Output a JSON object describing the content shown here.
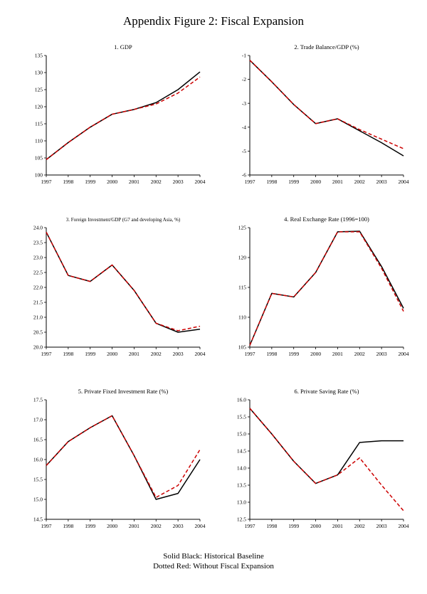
{
  "page": {
    "title": "Appendix Figure 2: Fiscal Expansion",
    "legend_line1": "Solid Black: Historical Baseline",
    "legend_line2": "Dotted Red: Without Fiscal Expansion"
  },
  "colors": {
    "baseline": "#000000",
    "counterfactual": "#cc0000"
  },
  "chart_data": [
    {
      "type": "line",
      "title": "1. GDP",
      "x": [
        "1997",
        "1998",
        "1999",
        "2000",
        "2001",
        "2002",
        "2003",
        "2004"
      ],
      "ylim": [
        100,
        135
      ],
      "yticks": [
        "100",
        "105",
        "110",
        "115",
        "120",
        "125",
        "130",
        "135"
      ],
      "legend_position": "none",
      "grid": false,
      "series": [
        {
          "name": "Historical Baseline",
          "style": "solid",
          "color": "#000000",
          "values": [
            104.5,
            109.5,
            114.0,
            117.8,
            119.2,
            121.2,
            125.0,
            130.2
          ]
        },
        {
          "name": "Without Fiscal Expansion",
          "style": "dashed",
          "color": "#cc0000",
          "values": [
            104.5,
            109.5,
            114.0,
            117.8,
            119.2,
            120.8,
            124.0,
            128.7
          ]
        }
      ]
    },
    {
      "type": "line",
      "title": "2. Trade Balance/GDP (%)",
      "x": [
        "1997",
        "1998",
        "1999",
        "2000",
        "2001",
        "2002",
        "2003",
        "2004"
      ],
      "ylim": [
        -6,
        -1
      ],
      "yticks": [
        "-1",
        "-2",
        "-3",
        "-4",
        "-5",
        "-6"
      ],
      "legend_position": "none",
      "grid": false,
      "series": [
        {
          "name": "Historical Baseline",
          "style": "solid",
          "color": "#000000",
          "values": [
            -1.2,
            -2.1,
            -3.05,
            -3.85,
            -3.65,
            -4.15,
            -4.65,
            -5.2
          ]
        },
        {
          "name": "Without Fiscal Expansion",
          "style": "dashed",
          "color": "#cc0000",
          "values": [
            -1.2,
            -2.1,
            -3.05,
            -3.85,
            -3.65,
            -4.1,
            -4.5,
            -4.9
          ]
        }
      ]
    },
    {
      "type": "line",
      "title": "3. Foreign Investment/GDP (G7 and developing Asia, %)",
      "x": [
        "1997",
        "1998",
        "1999",
        "2000",
        "2001",
        "2002",
        "2003",
        "2004"
      ],
      "ylim": [
        20.0,
        24.0
      ],
      "yticks": [
        "20.0",
        "20.5",
        "21.0",
        "21.5",
        "22.0",
        "22.5",
        "23.0",
        "23.5",
        "24.0"
      ],
      "legend_position": "none",
      "grid": false,
      "series": [
        {
          "name": "Historical Baseline",
          "style": "solid",
          "color": "#000000",
          "values": [
            23.85,
            22.4,
            22.2,
            22.75,
            21.9,
            20.8,
            20.5,
            20.6
          ]
        },
        {
          "name": "Without Fiscal Expansion",
          "style": "dashed",
          "color": "#cc0000",
          "values": [
            23.85,
            22.4,
            22.2,
            22.75,
            21.9,
            20.8,
            20.55,
            20.7
          ]
        }
      ]
    },
    {
      "type": "line",
      "title": "4. Real Exchange Rate (1996=100)",
      "x": [
        "1997",
        "1998",
        "1999",
        "2000",
        "2001",
        "2002",
        "2003",
        "2004"
      ],
      "ylim": [
        105,
        125
      ],
      "yticks": [
        "105",
        "110",
        "115",
        "120",
        "125"
      ],
      "legend_position": "none",
      "grid": false,
      "series": [
        {
          "name": "Historical Baseline",
          "style": "solid",
          "color": "#000000",
          "values": [
            105.3,
            114.0,
            113.4,
            117.5,
            124.3,
            124.4,
            118.5,
            111.5
          ]
        },
        {
          "name": "Without Fiscal Expansion",
          "style": "dashed",
          "color": "#cc0000",
          "values": [
            105.3,
            114.0,
            113.4,
            117.5,
            124.3,
            124.3,
            118.2,
            111.0
          ]
        }
      ]
    },
    {
      "type": "line",
      "title": "5. Private Fixed Investment Rate (%)",
      "x": [
        "1997",
        "1998",
        "1999",
        "2000",
        "2001",
        "2002",
        "2003",
        "2004"
      ],
      "ylim": [
        14.5,
        17.5
      ],
      "yticks": [
        "14.5",
        "15.0",
        "15.5",
        "16.0",
        "16.5",
        "17.0",
        "17.5"
      ],
      "legend_position": "none",
      "grid": false,
      "series": [
        {
          "name": "Historical Baseline",
          "style": "solid",
          "color": "#000000",
          "values": [
            15.85,
            16.45,
            16.8,
            17.1,
            16.1,
            15.0,
            15.15,
            16.0
          ]
        },
        {
          "name": "Without Fiscal Expansion",
          "style": "dashed",
          "color": "#cc0000",
          "values": [
            15.85,
            16.45,
            16.8,
            17.1,
            16.1,
            15.05,
            15.35,
            16.25
          ]
        }
      ]
    },
    {
      "type": "line",
      "title": "6. Private Saving Rate (%)",
      "x": [
        "1997",
        "1998",
        "1999",
        "2000",
        "2001",
        "2002",
        "2003",
        "2004"
      ],
      "ylim": [
        12.5,
        16.0
      ],
      "yticks": [
        "12.5",
        "13.0",
        "13.5",
        "14.0",
        "14.5",
        "15.0",
        "15.5",
        "16.0"
      ],
      "legend_position": "none",
      "grid": false,
      "series": [
        {
          "name": "Historical Baseline",
          "style": "solid",
          "color": "#000000",
          "values": [
            15.75,
            15.0,
            14.2,
            13.55,
            13.8,
            14.75,
            14.8,
            14.8
          ]
        },
        {
          "name": "Without Fiscal Expansion",
          "style": "dashed",
          "color": "#cc0000",
          "values": [
            15.75,
            15.0,
            14.2,
            13.55,
            13.8,
            14.3,
            13.5,
            12.75
          ]
        }
      ]
    }
  ]
}
